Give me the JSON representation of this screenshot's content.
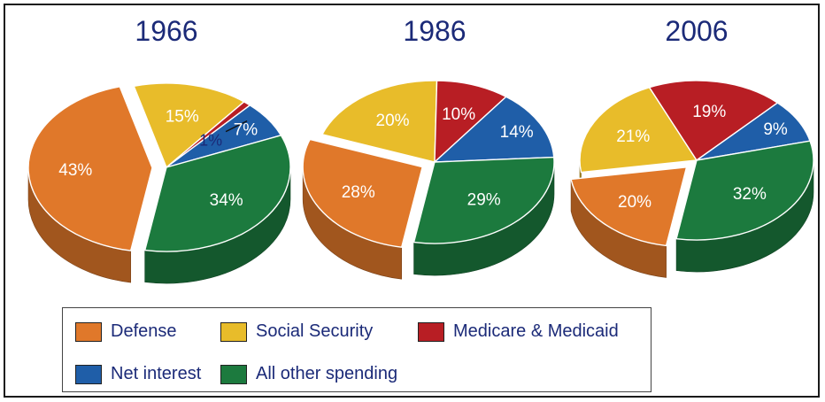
{
  "chart_data": {
    "type": "pie",
    "categories": [
      "Defense",
      "Social Security",
      "Medicare & Medicaid",
      "Net interest",
      "All other spending"
    ],
    "colors": {
      "Defense": "#e0782a",
      "Social Security": "#e8bc2a",
      "Medicare & Medicaid": "#b81e24",
      "Net interest": "#1f5ea8",
      "All other spending": "#1c7a3e"
    },
    "pies": [
      {
        "title": "1966",
        "slices": [
          {
            "category": "Defense",
            "value": 43,
            "label": "43%"
          },
          {
            "category": "Social Security",
            "value": 15,
            "label": "15%"
          },
          {
            "category": "Medicare & Medicaid",
            "value": 1,
            "label": "1%"
          },
          {
            "category": "Net interest",
            "value": 7,
            "label": "7%"
          },
          {
            "category": "All other spending",
            "value": 34,
            "label": "34%"
          }
        ]
      },
      {
        "title": "1986",
        "slices": [
          {
            "category": "Defense",
            "value": 28,
            "label": "28%"
          },
          {
            "category": "Social Security",
            "value": 20,
            "label": "20%"
          },
          {
            "category": "Medicare & Medicaid",
            "value": 10,
            "label": "10%"
          },
          {
            "category": "Net interest",
            "value": 14,
            "label": "14%"
          },
          {
            "category": "All other spending",
            "value": 29,
            "label": "29%"
          }
        ]
      },
      {
        "title": "2006",
        "slices": [
          {
            "category": "Defense",
            "value": 20,
            "label": "20%"
          },
          {
            "category": "Social Security",
            "value": 21,
            "label": "21%"
          },
          {
            "category": "Medicare & Medicaid",
            "value": 19,
            "label": "19%"
          },
          {
            "category": "Net interest",
            "value": 9,
            "label": "9%"
          },
          {
            "category": "All other spending",
            "value": 32,
            "label": "32%"
          }
        ]
      }
    ],
    "legend": {
      "position": "bottom",
      "items": [
        "Defense",
        "Social Security",
        "Medicare & Medicaid",
        "Net interest",
        "All other spending"
      ]
    }
  }
}
